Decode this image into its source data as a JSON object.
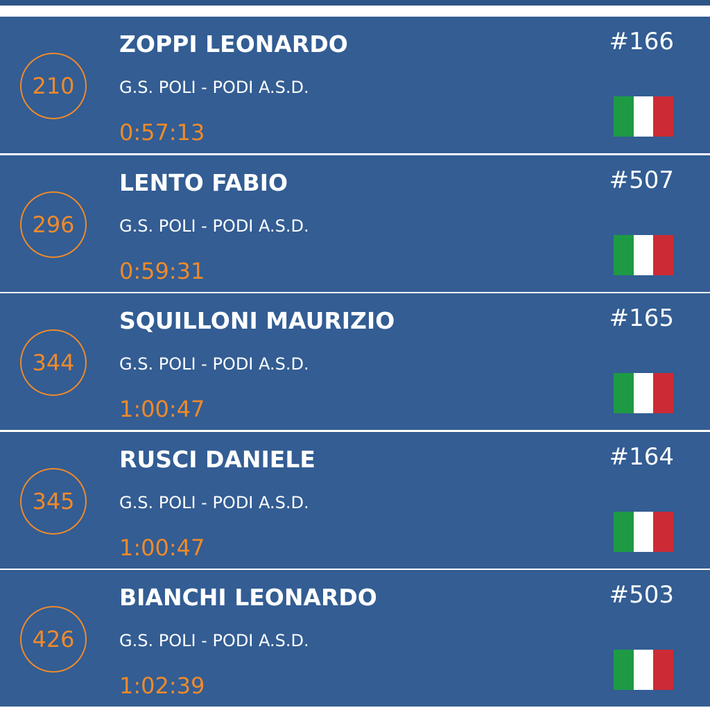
{
  "results": [
    {
      "position": "210",
      "name": "ZOPPI LEONARDO",
      "team": "G.S. POLI - PODI A.S.D.",
      "time": "0:57:13",
      "bib": "#166"
    },
    {
      "position": "296",
      "name": "LENTO FABIO",
      "team": "G.S. POLI - PODI A.S.D.",
      "time": "0:59:31",
      "bib": "#507"
    },
    {
      "position": "344",
      "name": "SQUILLONI MAURIZIO",
      "team": "G.S. POLI - PODI A.S.D.",
      "time": "1:00:47",
      "bib": "#165"
    },
    {
      "position": "345",
      "name": "RUSCI DANIELE",
      "team": "G.S. POLI - PODI A.S.D.",
      "time": "1:00:47",
      "bib": "#164"
    },
    {
      "position": "426",
      "name": "BIANCHI LEONARDO",
      "team": "G.S. POLI - PODI A.S.D.",
      "time": "1:02:39",
      "bib": "#503"
    }
  ]
}
